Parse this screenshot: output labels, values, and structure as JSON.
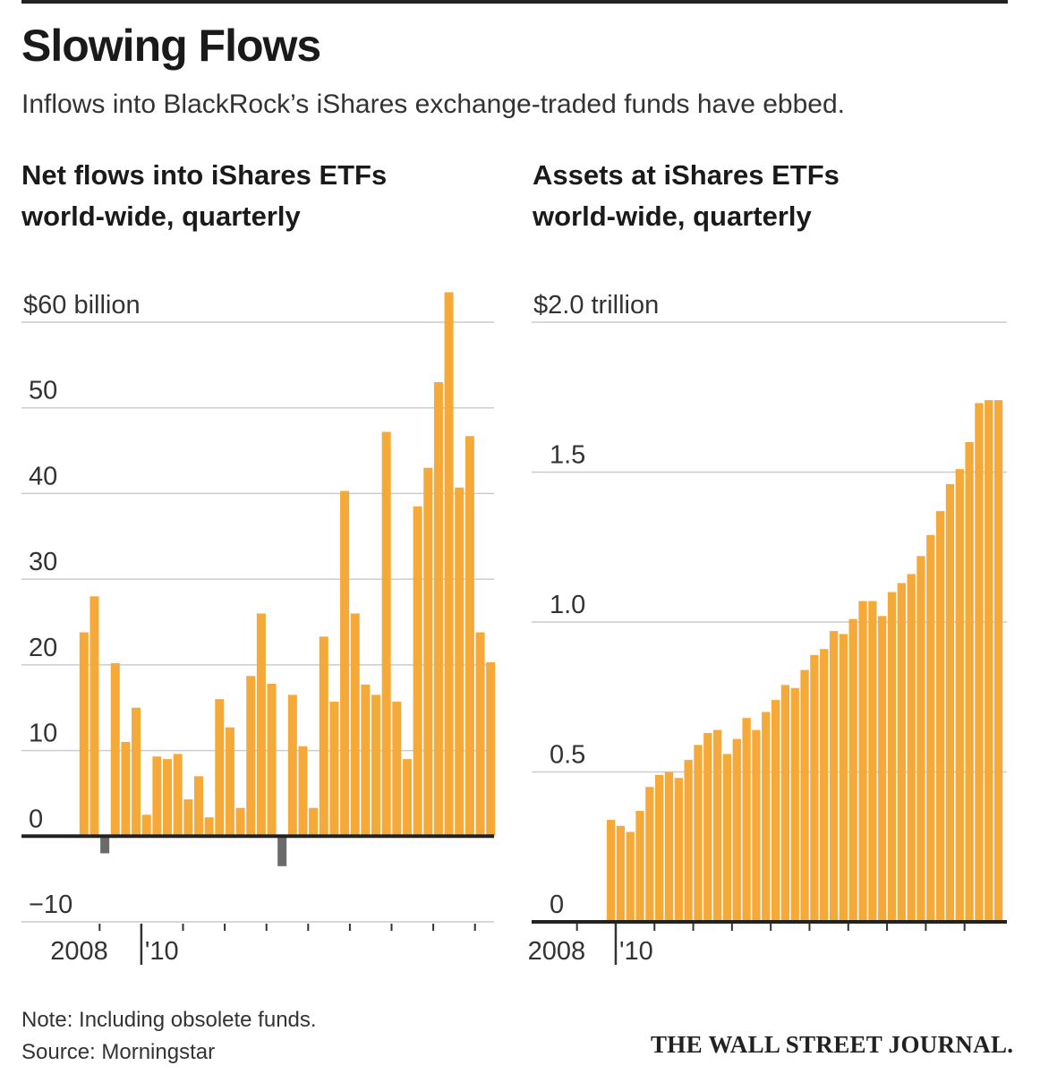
{
  "header": {
    "title": "Slowing Flows",
    "subtitle": "Inflows into BlackRock’s iShares exchange-traded funds have ebbed."
  },
  "colors": {
    "bar": "#f5a938",
    "negative_bar": "#6b6b6b",
    "grid": "#cccccc",
    "axis": "#222222"
  },
  "chart_data": [
    {
      "type": "bar",
      "title_lines": [
        "Net flows into iShares ETFs",
        "world-wide, quarterly"
      ],
      "ylabel": "$60 billion",
      "ylim": [
        -10,
        60
      ],
      "yticks": [
        {
          "value": 60,
          "label": "$60 billion"
        },
        {
          "value": 50,
          "label": "50"
        },
        {
          "value": 40,
          "label": "40"
        },
        {
          "value": 30,
          "label": "30"
        },
        {
          "value": 20,
          "label": "20"
        },
        {
          "value": 10,
          "label": "10"
        },
        {
          "value": 0,
          "label": "0"
        },
        {
          "value": -10,
          "label": "−10"
        }
      ],
      "x_start": "2008 Q1",
      "xticks": [
        {
          "label": "2008",
          "index": 2
        },
        {
          "label": "'10",
          "index": 6
        }
      ],
      "values": [
        23.8,
        28.0,
        -2.0,
        20.2,
        11.0,
        15.0,
        2.5,
        9.3,
        9.0,
        9.6,
        4.3,
        7.0,
        2.2,
        16.0,
        12.7,
        3.3,
        18.7,
        26.0,
        17.8,
        -3.5,
        16.5,
        10.5,
        3.3,
        23.3,
        15.7,
        40.3,
        26.0,
        17.7,
        16.5,
        47.2,
        15.7,
        9.0,
        38.5,
        43.0,
        53.0,
        63.5,
        40.7,
        46.7,
        23.8,
        20.3
      ]
    },
    {
      "type": "bar",
      "title_lines": [
        "Assets at iShares ETFs",
        "world-wide, quarterly"
      ],
      "ylabel": "$2.0 trillion",
      "ylim": [
        0,
        2.0
      ],
      "yticks": [
        {
          "value": 2.0,
          "label": "$2.0 trillion"
        },
        {
          "value": 1.5,
          "label": "1.5"
        },
        {
          "value": 1.0,
          "label": "1.0"
        },
        {
          "value": 0.5,
          "label": "0.5"
        },
        {
          "value": 0,
          "label": "0"
        }
      ],
      "x_start": "2007 Q1",
      "xticks": [
        {
          "label": "2008",
          "index": 2
        },
        {
          "label": "'10",
          "index": 6
        }
      ],
      "values": [
        0,
        0,
        0,
        0,
        0,
        0.34,
        0.32,
        0.3,
        0.37,
        0.45,
        0.49,
        0.5,
        0.48,
        0.54,
        0.59,
        0.63,
        0.64,
        0.56,
        0.61,
        0.68,
        0.64,
        0.7,
        0.74,
        0.79,
        0.78,
        0.84,
        0.89,
        0.91,
        0.97,
        0.96,
        1.01,
        1.07,
        1.07,
        1.02,
        1.1,
        1.13,
        1.16,
        1.22,
        1.29,
        1.37,
        1.46,
        1.51,
        1.6,
        1.73,
        1.74,
        1.74
      ]
    }
  ],
  "footer": {
    "note": "Note: Including obsolete funds.",
    "source": "Source: Morningstar",
    "brand": "THE WALL STREET JOURNAL."
  }
}
